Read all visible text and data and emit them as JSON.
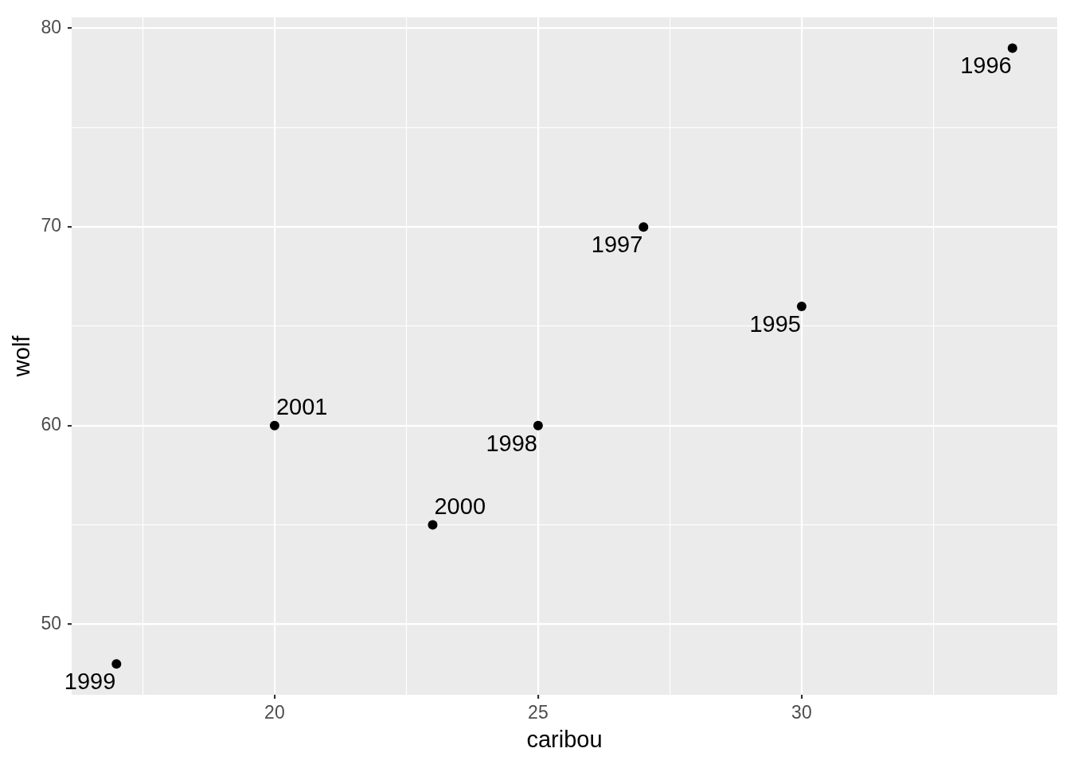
{
  "chart_data": {
    "type": "scatter",
    "xlabel": "caribou",
    "ylabel": "wolf",
    "x": [
      30,
      34,
      27,
      25,
      17,
      23,
      20
    ],
    "values": [
      66,
      79,
      70,
      60,
      48,
      55,
      60
    ],
    "color": "#000000",
    "marker": "circle",
    "xlim": [
      16.15,
      34.85
    ],
    "xticks": [
      {
        "value": 17.5,
        "label": null
      },
      20,
      {
        "value": 22.5,
        "label": null
      },
      25,
      {
        "value": 27.5,
        "label": null
      },
      30,
      {
        "value": 32.5,
        "label": null
      }
    ],
    "ylim": [
      46.45,
      80.55
    ],
    "yticks": [
      50,
      {
        "value": 55,
        "label": null
      },
      60,
      {
        "value": 65,
        "label": null
      },
      70,
      {
        "value": 75,
        "label": null
      },
      80
    ],
    "grid": true,
    "annotations": [
      {
        "text": "1995",
        "x": 30,
        "y": 66
      },
      {
        "text": "1996",
        "x": 34,
        "y": 79
      },
      {
        "text": "1997",
        "x": 27,
        "y": 70
      },
      {
        "text": "1998",
        "x": 25,
        "y": 60
      },
      {
        "text": "1999",
        "x": 17,
        "y": 48
      },
      {
        "text": "2000",
        "x": 23,
        "y": 55
      },
      {
        "text": "2001",
        "x": 20,
        "y": 60
      }
    ]
  }
}
